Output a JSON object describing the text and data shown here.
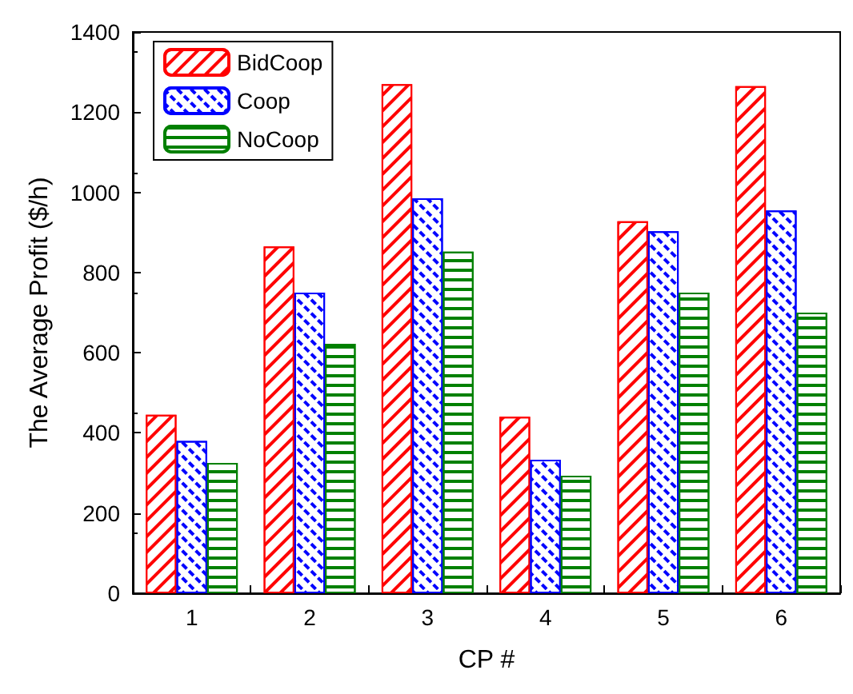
{
  "chart_data": {
    "type": "bar",
    "xlabel": "CP #",
    "ylabel": "The Average Profit ($/h)",
    "categories": [
      "1",
      "2",
      "3",
      "4",
      "5",
      "6"
    ],
    "series": [
      {
        "name": "BidCoop",
        "color": "#ff0000",
        "values": [
          445,
          865,
          1270,
          440,
          928,
          1265
        ]
      },
      {
        "name": "Coop",
        "color": "#0000ff",
        "values": [
          380,
          750,
          985,
          333,
          903,
          955
        ]
      },
      {
        "name": "NoCoop",
        "color": "#008000",
        "values": [
          325,
          622,
          852,
          293,
          750,
          700
        ]
      }
    ],
    "ylim": [
      0,
      1400
    ],
    "yticks": [
      0,
      200,
      400,
      600,
      800,
      1000,
      1200,
      1400
    ],
    "grid": false,
    "legend": "top left"
  }
}
